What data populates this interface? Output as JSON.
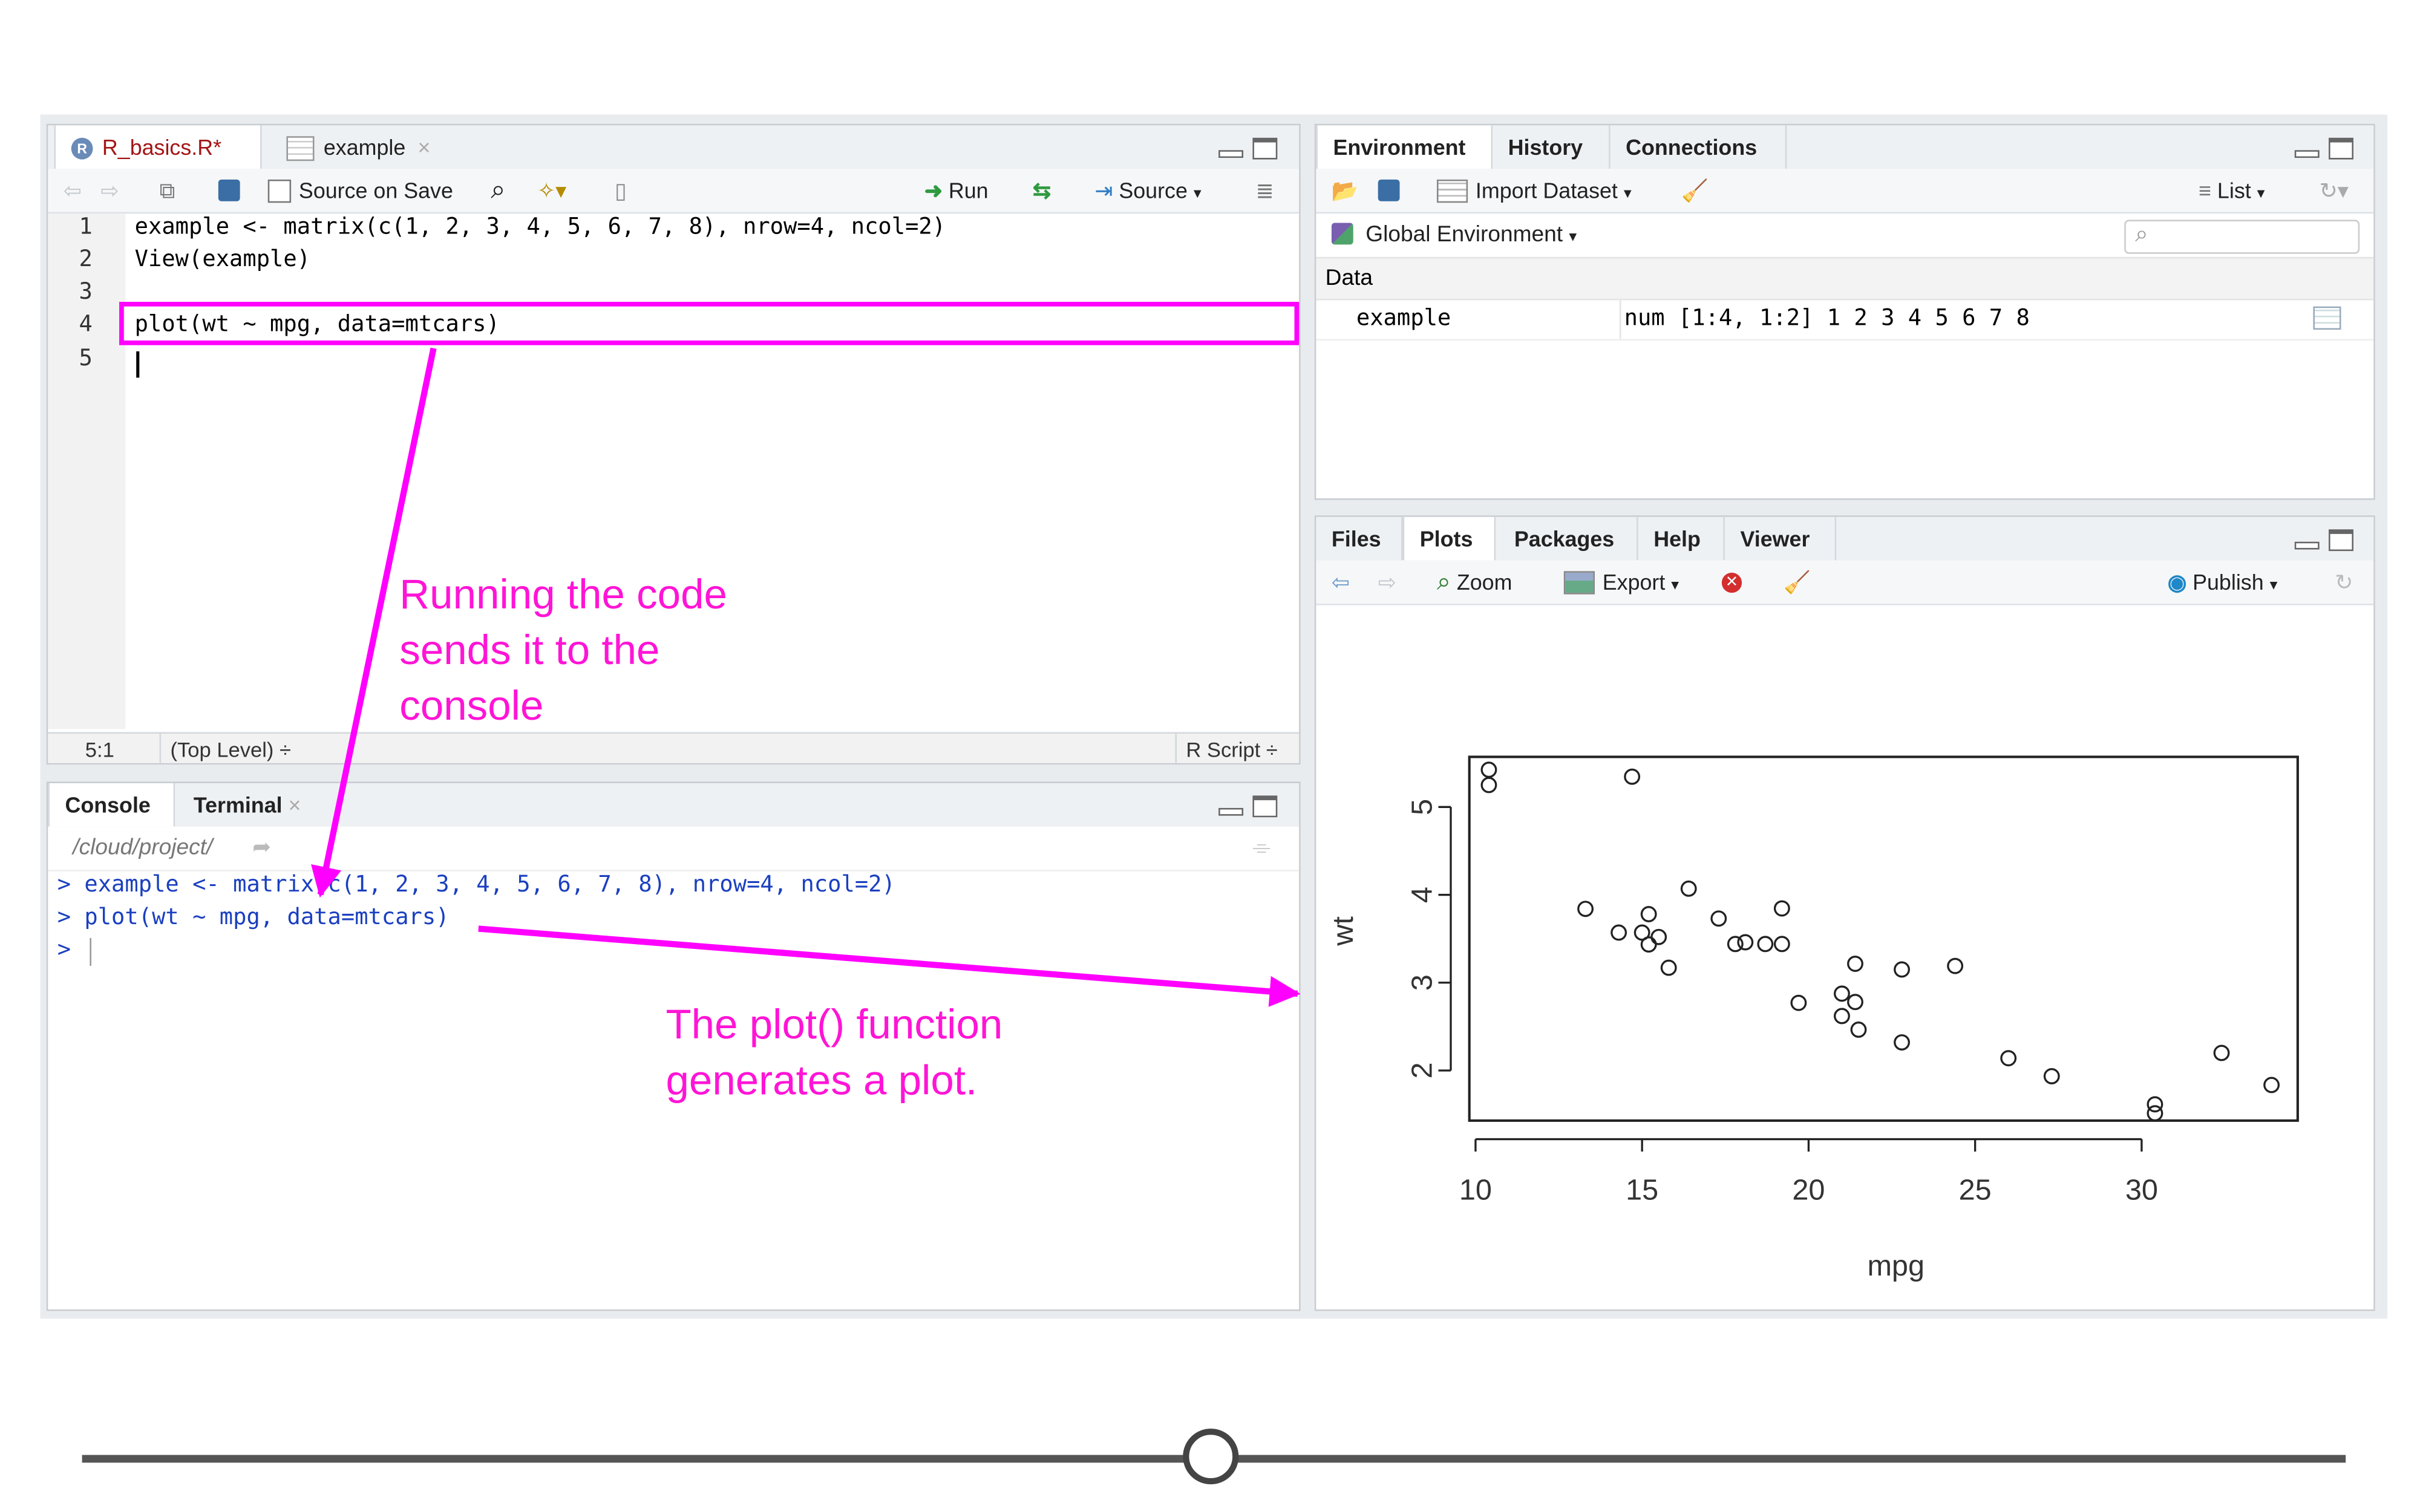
{
  "editor": {
    "tabs": [
      {
        "label": "R_basics.R*",
        "close": "×"
      },
      {
        "label": "example",
        "close": "×"
      }
    ],
    "toolbar": {
      "source_on_save": "Source on Save",
      "run": "Run",
      "source": "Source"
    },
    "line_numbers": [
      "1",
      "2",
      "3",
      "4",
      "5"
    ],
    "lines": [
      "example <- matrix(c(1, 2, 3, 4, 5, 6, 7, 8), nrow=4, ncol=2)",
      "View(example)",
      "",
      "plot(wt ~ mpg, data=mtcars)",
      ""
    ],
    "status": {
      "position": "5:1",
      "scope": "(Top Level) ÷",
      "filetype": "R Script ÷"
    }
  },
  "console": {
    "tabs": [
      {
        "label": "Console"
      },
      {
        "label": "Terminal",
        "close": "×"
      }
    ],
    "path": "/cloud/project/",
    "lines": [
      "> example <- matrix(c(1, 2, 3, 4, 5, 6, 7, 8), nrow=4, ncol=2)",
      "> plot(wt ~ mpg, data=mtcars)",
      "> "
    ]
  },
  "environment": {
    "tabs": [
      "Environment",
      "History",
      "Connections"
    ],
    "toolbar": {
      "import": "Import Dataset",
      "list": "List"
    },
    "scope": "Global Environment",
    "section": "Data",
    "rows": [
      {
        "name": "example",
        "value": "num [1:4, 1:2] 1 2 3 4 5 6 7 8"
      }
    ]
  },
  "files": {
    "tabs": [
      "Files",
      "Plots",
      "Packages",
      "Help",
      "Viewer"
    ],
    "toolbar": {
      "zoom": "Zoom",
      "export": "Export",
      "publish": "Publish"
    }
  },
  "annotations": {
    "run_note": "Running the code\nsends it to the\nconsole",
    "plot_note": "The plot() function\ngenerates a plot."
  },
  "colors": {
    "highlight": "#ff00ff",
    "annotation": "#ff14d6",
    "console_text": "#1a3fbf"
  },
  "player": {
    "progress": 0.5
  },
  "chart_data": {
    "type": "scatter",
    "xlabel": "mpg",
    "ylabel": "wt",
    "xlim": [
      10,
      34.5
    ],
    "ylim": [
      1.5,
      5.5
    ],
    "xticks": [
      "10",
      "15",
      "20",
      "25",
      "30"
    ],
    "yticks": [
      "2",
      "3",
      "4",
      "5"
    ],
    "points": [
      {
        "x": 21.0,
        "y": 2.62
      },
      {
        "x": 21.0,
        "y": 2.875
      },
      {
        "x": 22.8,
        "y": 2.32
      },
      {
        "x": 21.4,
        "y": 3.215
      },
      {
        "x": 18.7,
        "y": 3.44
      },
      {
        "x": 18.1,
        "y": 3.46
      },
      {
        "x": 14.3,
        "y": 3.57
      },
      {
        "x": 24.4,
        "y": 3.19
      },
      {
        "x": 22.8,
        "y": 3.15
      },
      {
        "x": 19.2,
        "y": 3.44
      },
      {
        "x": 17.8,
        "y": 3.44
      },
      {
        "x": 16.4,
        "y": 4.07
      },
      {
        "x": 17.3,
        "y": 3.73
      },
      {
        "x": 15.2,
        "y": 3.78
      },
      {
        "x": 10.4,
        "y": 5.25
      },
      {
        "x": 10.4,
        "y": 5.424
      },
      {
        "x": 14.7,
        "y": 5.345
      },
      {
        "x": 32.4,
        "y": 2.2
      },
      {
        "x": 30.4,
        "y": 1.615
      },
      {
        "x": 33.9,
        "y": 1.835
      },
      {
        "x": 21.5,
        "y": 2.465
      },
      {
        "x": 15.5,
        "y": 3.52
      },
      {
        "x": 15.2,
        "y": 3.435
      },
      {
        "x": 13.3,
        "y": 3.84
      },
      {
        "x": 19.2,
        "y": 3.845
      },
      {
        "x": 27.3,
        "y": 1.935
      },
      {
        "x": 26.0,
        "y": 2.14
      },
      {
        "x": 30.4,
        "y": 1.513
      },
      {
        "x": 15.8,
        "y": 3.17
      },
      {
        "x": 19.7,
        "y": 2.77
      },
      {
        "x": 15.0,
        "y": 3.57
      },
      {
        "x": 21.4,
        "y": 2.78
      }
    ]
  }
}
